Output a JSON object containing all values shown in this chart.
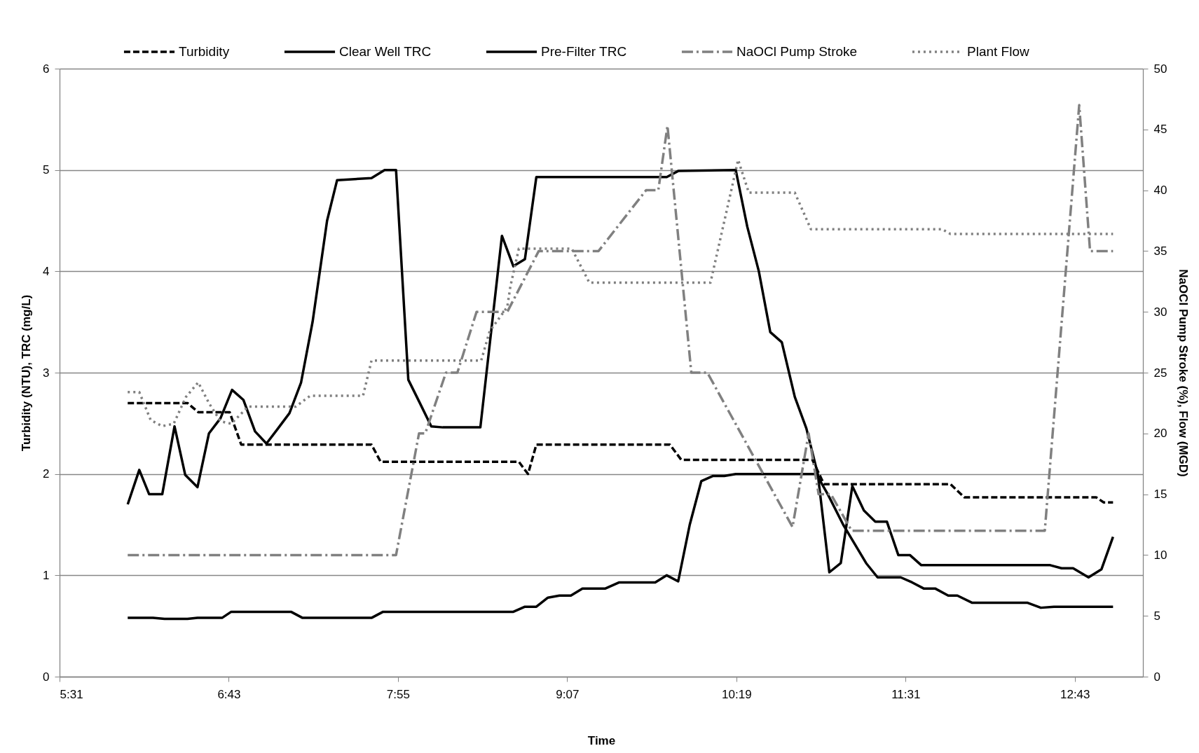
{
  "chart_data": {
    "type": "line",
    "xlabel": "Time",
    "ylabel": "Turbidity (NTU), TRC (mg/L)",
    "y2label": "NaOCl Pump Stroke (%), Flow (MGD)",
    "xlim": [
      5.5167,
      13.2
    ],
    "xticks": [
      {
        "value": 5.5167,
        "label": "5:31"
      },
      {
        "value": 6.7167,
        "label": "6:43"
      },
      {
        "value": 7.9167,
        "label": "7:55"
      },
      {
        "value": 9.1167,
        "label": "9:07"
      },
      {
        "value": 10.3167,
        "label": "10:19"
      },
      {
        "value": 11.5167,
        "label": "11:31"
      },
      {
        "value": 12.7167,
        "label": "12:43"
      }
    ],
    "ylim": [
      0,
      6
    ],
    "yticks": [
      0,
      1,
      2,
      3,
      4,
      5,
      6
    ],
    "y2lim": [
      0,
      50
    ],
    "y2ticks": [
      0,
      5,
      10,
      15,
      20,
      25,
      30,
      35,
      40,
      45,
      50
    ],
    "grid": "y",
    "legend": "top",
    "series": [
      {
        "name": "Turbidity",
        "color": "#000000",
        "line_style": "dashed",
        "x": [
          6.0,
          6.424,
          6.5,
          6.723,
          6.805,
          7.729,
          7.794,
          8.774,
          8.839,
          8.898,
          9.845,
          9.926,
          10.856,
          10.938,
          11.835,
          11.933,
          12.868,
          12.922,
          12.988
        ],
        "values": [
          2.7,
          2.7,
          2.61,
          2.61,
          2.29,
          2.29,
          2.12,
          2.12,
          2.0,
          2.29,
          2.29,
          2.14,
          2.14,
          1.9,
          1.9,
          1.77,
          1.77,
          1.72,
          1.72
        ]
      },
      {
        "name": "Clear Well TRC",
        "color": "#000000",
        "line_style": "solid",
        "x": [
          6.0,
          6.179,
          6.261,
          6.424,
          6.495,
          6.669,
          6.734,
          7.158,
          7.24,
          7.729,
          7.811,
          8.735,
          8.817,
          8.898,
          8.98,
          9.062,
          9.143,
          9.225,
          9.388,
          9.486,
          9.741,
          9.823,
          9.904,
          9.986,
          10.068,
          10.149,
          10.231,
          10.312,
          10.883,
          10.965,
          11.074,
          11.237,
          11.318,
          11.482,
          11.563,
          11.645,
          11.726,
          11.819,
          11.884,
          11.987,
          12.379,
          12.476,
          12.569,
          12.988
        ],
        "values": [
          0.58,
          0.58,
          0.57,
          0.57,
          0.58,
          0.58,
          0.64,
          0.64,
          0.58,
          0.58,
          0.64,
          0.64,
          0.69,
          0.69,
          0.78,
          0.8,
          0.8,
          0.87,
          0.87,
          0.93,
          0.93,
          1.0,
          0.94,
          1.5,
          1.93,
          1.98,
          1.98,
          2.0,
          2.0,
          1.8,
          1.5,
          1.12,
          0.98,
          0.98,
          0.93,
          0.87,
          0.87,
          0.8,
          0.8,
          0.73,
          0.73,
          0.68,
          0.69,
          0.69
        ]
      },
      {
        "name": "Pre-Filter TRC",
        "color": "#000000",
        "line_style": "solid",
        "x": [
          6.0,
          6.082,
          6.152,
          6.245,
          6.332,
          6.408,
          6.495,
          6.576,
          6.658,
          6.74,
          6.821,
          6.903,
          6.984,
          7.066,
          7.147,
          7.229,
          7.311,
          7.414,
          7.485,
          7.729,
          7.822,
          7.903,
          7.99,
          8.072,
          8.153,
          8.235,
          8.501,
          8.654,
          8.735,
          8.817,
          8.898,
          9.823,
          9.904,
          10.312,
          10.394,
          10.476,
          10.557,
          10.639,
          10.731,
          10.813,
          10.894,
          10.976,
          11.057,
          11.139,
          11.221,
          11.302,
          11.384,
          11.465,
          11.547,
          11.628,
          12.542,
          12.623,
          12.705,
          12.814,
          12.906,
          12.988
        ],
        "values": [
          1.7,
          2.04,
          1.8,
          1.8,
          2.47,
          1.99,
          1.87,
          2.4,
          2.55,
          2.83,
          2.73,
          2.42,
          2.3,
          2.45,
          2.6,
          2.9,
          3.5,
          4.5,
          4.9,
          4.92,
          5.0,
          5.0,
          2.93,
          2.7,
          2.47,
          2.46,
          2.46,
          4.35,
          4.05,
          4.12,
          4.93,
          4.93,
          4.99,
          5.0,
          4.44,
          4.0,
          3.4,
          3.3,
          2.76,
          2.45,
          2.0,
          1.03,
          1.12,
          1.88,
          1.64,
          1.53,
          1.53,
          1.2,
          1.2,
          1.1,
          1.1,
          1.07,
          1.07,
          0.98,
          1.06,
          1.38
        ]
      },
      {
        "name": "NaOCl Pump Stroke",
        "color": "#808080",
        "line_style": "dashdot",
        "axis": "y2",
        "x": [
          6.0,
          7.903,
          8.066,
          8.11,
          8.257,
          8.338,
          8.474,
          8.692,
          8.915,
          9.339,
          9.676,
          9.763,
          9.828,
          9.997,
          10.111,
          10.715,
          10.829,
          10.9,
          10.987,
          11.134,
          12.504,
          12.748,
          12.825,
          12.988
        ],
        "values": [
          10,
          10,
          20,
          20,
          25,
          25,
          30,
          30,
          35,
          35,
          40,
          40,
          45.3,
          25,
          25,
          12.3,
          20,
          15,
          15,
          12,
          12,
          47,
          35,
          35
        ]
      },
      {
        "name": "Plant Flow",
        "color": "#808080",
        "line_style": "dotted",
        "axis": "y2",
        "x": [
          6.0,
          6.082,
          6.163,
          6.245,
          6.326,
          6.413,
          6.5,
          6.576,
          6.658,
          6.734,
          6.854,
          7.191,
          7.294,
          7.669,
          7.729,
          8.507,
          8.567,
          8.692,
          8.714,
          8.774,
          9.149,
          9.274,
          10.133,
          10.329,
          10.405,
          10.731,
          10.845,
          11.775,
          11.835,
          12.988
        ],
        "values": [
          23.4,
          23.4,
          21.1,
          20.6,
          20.8,
          23.0,
          24.2,
          22.5,
          21.0,
          20.8,
          22.2,
          22.2,
          23.1,
          23.1,
          26.0,
          26.0,
          28.4,
          30.4,
          32.1,
          35.2,
          35.2,
          32.4,
          32.4,
          42.5,
          39.8,
          39.8,
          36.8,
          36.8,
          36.4,
          36.4
        ]
      }
    ]
  }
}
